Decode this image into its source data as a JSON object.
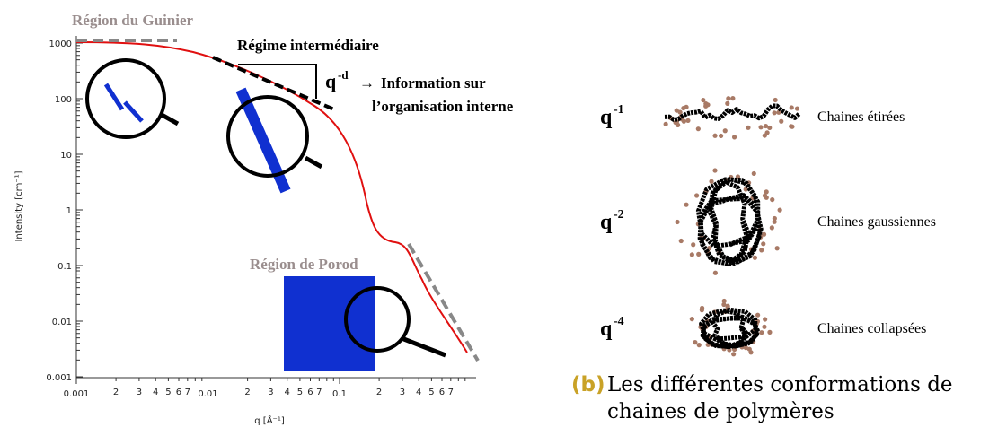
{
  "figure_a": {
    "y_axis_label": "Intensity [cm⁻¹]",
    "x_axis_label": "q [Å⁻¹]",
    "y_tick_labels": [
      "1000",
      "100",
      "10",
      "1",
      "0.1",
      "0.01",
      "0.001"
    ],
    "x_tick_labels": [
      "0.001",
      "0.01",
      "0.1"
    ],
    "x_minor_tick_labels": [
      "2",
      "3",
      "4",
      "5",
      "6",
      "7",
      "2",
      "3",
      "4",
      "5",
      "6",
      "7",
      "2",
      "3",
      "4",
      "5",
      "6",
      "7"
    ],
    "annotations": {
      "guinier": "Région du Guinier",
      "intermediate": "Régime intermédiaire",
      "slope": "q",
      "slope_exp": "-d",
      "arrow": "→",
      "info": [
        "Information sur",
        "l’organisation interne"
      ],
      "porod": "Région de Porod"
    }
  },
  "figure_b": {
    "rows": [
      {
        "power": "q",
        "exponent": "-1",
        "label": "Chaines étirées"
      },
      {
        "power": "q",
        "exponent": "-2",
        "label": "Chaines gaussiennes"
      },
      {
        "power": "q",
        "exponent": "-4",
        "label": "Chaines collapsées"
      }
    ],
    "caption_tag": "(b)",
    "caption": [
      "Les différentes conformations de",
      "chaines de polymères"
    ]
  }
}
